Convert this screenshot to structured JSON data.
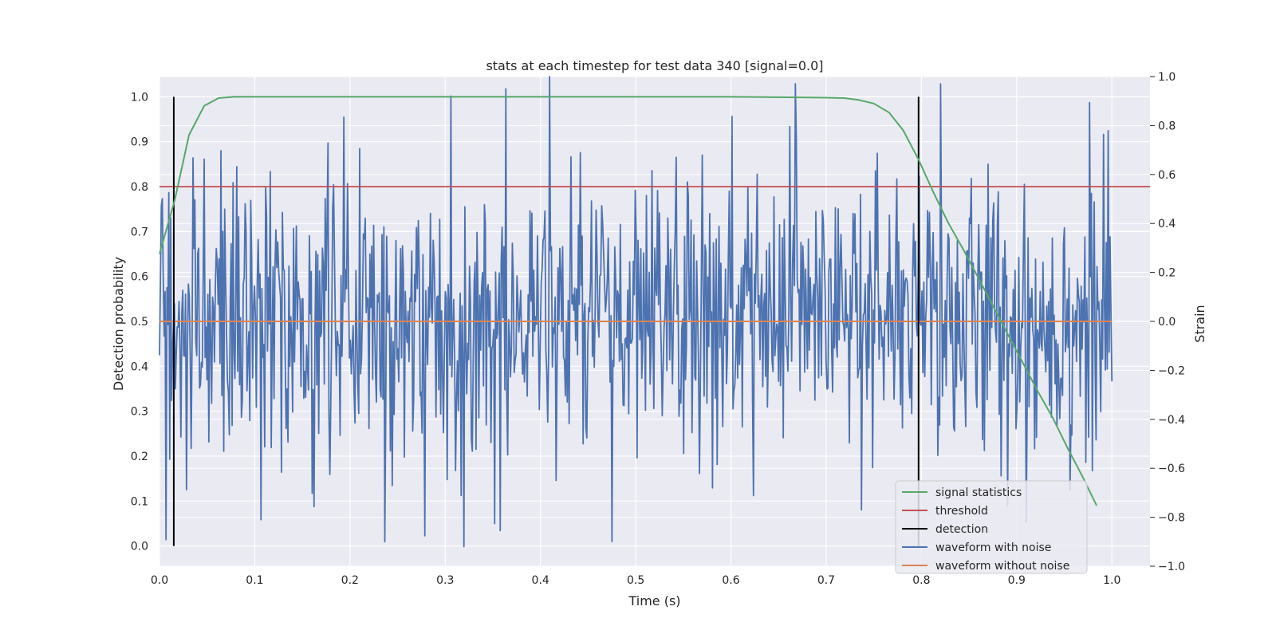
{
  "chart_data": {
    "type": "line",
    "title": "stats at each timestep for test data 340 [signal=0.0]",
    "xlabel": "Time (s)",
    "ylabel_left": "Detection probability",
    "ylabel_right": "Strain",
    "xlim": [
      0.0,
      1.04
    ],
    "ylim_left": [
      -0.045,
      1.045
    ],
    "ylim_right": [
      -1.0,
      1.0
    ],
    "x_ticks": [
      "0.0",
      "0.1",
      "0.2",
      "0.3",
      "0.4",
      "0.5",
      "0.6",
      "0.7",
      "0.8",
      "0.9",
      "1.0"
    ],
    "x_tick_values": [
      0.0,
      0.1,
      0.2,
      0.3,
      0.4,
      0.5,
      0.6,
      0.7,
      0.8,
      0.9,
      1.0
    ],
    "y_left_ticks": [
      "0.0",
      "0.1",
      "0.2",
      "0.3",
      "0.4",
      "0.5",
      "0.6",
      "0.7",
      "0.8",
      "0.9",
      "1.0"
    ],
    "y_left_tick_values": [
      0.0,
      0.1,
      0.2,
      0.3,
      0.4,
      0.5,
      0.6,
      0.7,
      0.8,
      0.9,
      1.0
    ],
    "y_right_ticks": [
      "1.0",
      "0.8",
      "0.6",
      "0.4",
      "0.2",
      "0.0",
      "−0.2",
      "−0.4",
      "−0.6",
      "−0.8",
      "−1.0"
    ],
    "y_right_tick_values": [
      1.0,
      0.8,
      0.6,
      0.4,
      0.2,
      0.0,
      -0.2,
      -0.4,
      -0.6,
      -0.8,
      -1.0
    ],
    "grid": true,
    "legend_position": "bottom-right",
    "series": [
      {
        "name": "signal statistics",
        "color": "#55a868",
        "axis": "left",
        "x": [
          0.0,
          0.016,
          0.031,
          0.047,
          0.062,
          0.078,
          0.094,
          0.2,
          0.3,
          0.4,
          0.5,
          0.6,
          0.7,
          0.719,
          0.734,
          0.75,
          0.766,
          0.781,
          0.797,
          0.812,
          0.828,
          0.844,
          0.859,
          0.875,
          0.891,
          0.906,
          0.922,
          0.938,
          0.953,
          0.969,
          0.984
        ],
        "values": [
          0.65,
          0.77,
          0.915,
          0.98,
          0.997,
          1.0,
          1.0,
          1.0,
          1.0,
          1.0,
          1.0,
          1.0,
          0.998,
          0.997,
          0.993,
          0.985,
          0.965,
          0.925,
          0.86,
          0.79,
          0.72,
          0.66,
          0.6,
          0.535,
          0.47,
          0.41,
          0.345,
          0.285,
          0.22,
          0.155,
          0.09
        ]
      },
      {
        "name": "threshold",
        "color": "#c44e52",
        "axis": "left",
        "x": [
          0.0,
          1.04
        ],
        "values": [
          0.8,
          0.8
        ]
      },
      {
        "name": "detection",
        "color": "#000000",
        "axis": "left",
        "x_positions": [
          0.015,
          0.797
        ],
        "range": [
          0.0,
          1.0
        ]
      },
      {
        "name": "waveform with noise",
        "color": "#4c72b0",
        "axis": "right",
        "x_start": 0.0,
        "x_end": 1.0,
        "points": 1024,
        "amplitude": 0.3,
        "seed": 340,
        "landmarks": [
          {
            "x": 0.32,
            "y": -0.92
          },
          {
            "x": 0.41,
            "y": 1.0
          },
          {
            "x": 0.306,
            "y": 0.92
          },
          {
            "x": 0.668,
            "y": 0.97
          },
          {
            "x": 0.82,
            "y": 0.97
          },
          {
            "x": 0.107,
            "y": -0.81
          }
        ]
      },
      {
        "name": "waveform without noise",
        "color": "#dd8452",
        "axis": "right",
        "x": [
          0.0,
          1.0
        ],
        "values": [
          0.0,
          0.0
        ]
      }
    ]
  }
}
